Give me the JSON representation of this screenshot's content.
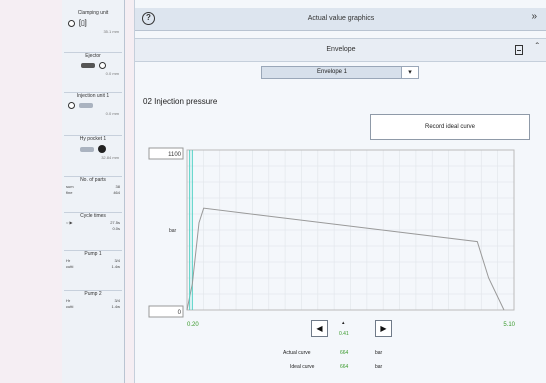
{
  "sidebar": {
    "clamping": {
      "title": "Clamping unit",
      "value": "35.1 mm"
    },
    "ejector": {
      "title": "Ejector",
      "value": "0.0 mm"
    },
    "injection": {
      "title": "Injection unit 1",
      "value": "0.0 mm"
    },
    "nozzle": {
      "title": "Hy pocket 1",
      "value": "32.84 mm"
    },
    "parts": {
      "title": "No. of parts",
      "row1_label": "sum",
      "row1_value": "38",
      "row2_label": "fine",
      "row2_value": "464"
    },
    "cycle": {
      "title": "Cycle times",
      "row1_value": "27.5s",
      "row2_value": "0.0s"
    },
    "pump1": {
      "title": "Pump 1",
      "row1_label": "Hr",
      "row1_value": "3/4",
      "row2_label": "cutti",
      "row2_value": "1.4w"
    },
    "pump2": {
      "title": "Pump 2",
      "row1_label": "Hr",
      "row1_value": "3/4",
      "row2_label": "cutti",
      "row2_value": "1.4w"
    }
  },
  "header": {
    "title": "Actual value graphics"
  },
  "subheader": {
    "title": "Envelope"
  },
  "dropdown": {
    "selected": "Envelope 1",
    "arrow": "▾"
  },
  "section": {
    "title": "02 Injection pressure"
  },
  "record_button": {
    "label": "Record ideal curve"
  },
  "chart": {
    "y_max_label": "1100",
    "y_min_label": "0",
    "y_unit": "bar",
    "x_start_label": "0.20",
    "x_end_label": "5.10",
    "cursor_value": "0.41",
    "color_ideal": "#4fd1c5",
    "color_envelope": "#999999"
  },
  "chart_data": {
    "type": "line",
    "title": "02 Injection pressure",
    "ylabel": "bar",
    "xlabel": "",
    "xlim": [
      0.2,
      5.1
    ],
    "ylim": [
      0,
      1100
    ],
    "grid": true,
    "series": [
      {
        "name": "Actual curve",
        "x": [
          0.2,
          0.28,
          0.38,
          0.45,
          4.55,
          4.72,
          4.95
        ],
        "y": [
          0,
          180,
          600,
          700,
          470,
          220,
          0
        ]
      }
    ]
  },
  "readout": {
    "actual_label": "Actual curve",
    "actual_value": "664",
    "actual_unit": "bar",
    "ideal_label": "Ideal curve",
    "ideal_value": "664",
    "ideal_unit": "bar"
  }
}
